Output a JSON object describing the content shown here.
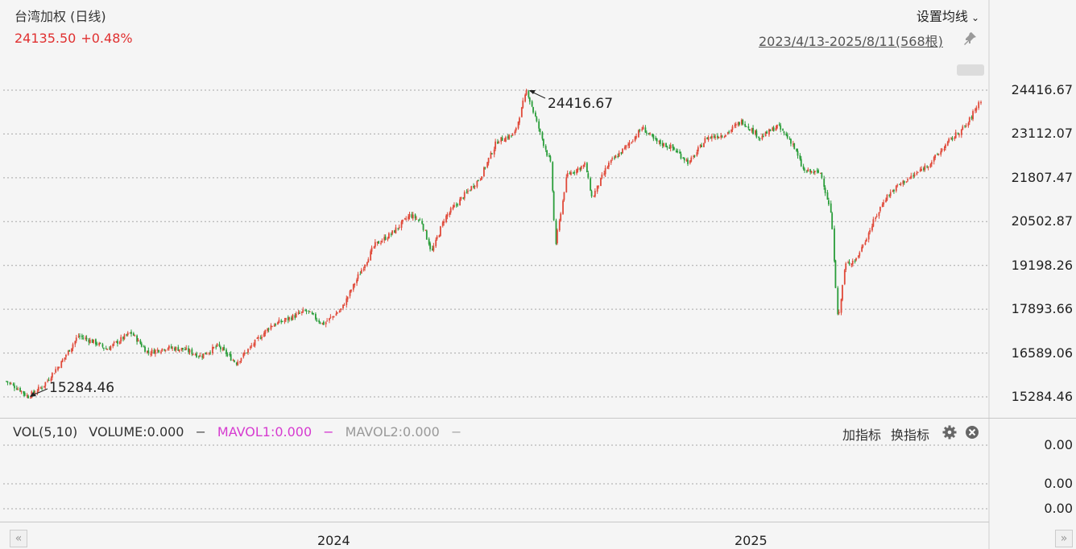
{
  "header": {
    "title": "台湾加权 (日线)",
    "price": "24135.50",
    "change": "+0.48%",
    "ma_settings_label": "设置均线",
    "range_label": "2023/4/13-2025/8/11(568根)"
  },
  "volume_panel": {
    "name": "VOL(5,10)",
    "volume": "VOLUME:0.000",
    "mavol1": "MAVOL1:0.000",
    "mavol2": "MAVOL2:0.000",
    "add_indicator": "加指标",
    "switch_indicator": "换指标",
    "y_ticks": [
      "0.00",
      "0.00",
      "0.00"
    ]
  },
  "icons": [
    "chevron-down-icon",
    "pin-icon",
    "gear-icon",
    "close-icon",
    "double-left-icon",
    "double-right-icon"
  ],
  "colors": {
    "up": "#e04a3a",
    "down": "#2a9d3a",
    "price_text": "#e03030",
    "mavol1": "#d63bd0",
    "mavol2": "#999999"
  },
  "chart_data": {
    "type": "candlestick",
    "x_range": [
      "2023-04-13",
      "2025-08-11"
    ],
    "bar_count": 568,
    "x_ticks": [
      "2024",
      "2025"
    ],
    "y_ticks": [
      "24416.67",
      "23112.07",
      "21807.47",
      "20502.87",
      "19198.26",
      "17893.66",
      "16589.06",
      "15284.46"
    ],
    "ylim": [
      15284.46,
      24416.67
    ],
    "annotations": {
      "high": "24416.67",
      "low": "15284.46"
    },
    "close_path": [
      [
        "2023-04-13",
        15750
      ],
      [
        "2023-04-25",
        15500
      ],
      [
        "2023-05-02",
        15284.46
      ],
      [
        "2023-05-15",
        15600
      ],
      [
        "2023-05-31",
        16300
      ],
      [
        "2023-06-15",
        17100
      ],
      [
        "2023-06-30",
        16900
      ],
      [
        "2023-07-10",
        16700
      ],
      [
        "2023-07-31",
        17200
      ],
      [
        "2023-08-15",
        16600
      ],
      [
        "2023-08-31",
        16750
      ],
      [
        "2023-09-15",
        16700
      ],
      [
        "2023-09-30",
        16500
      ],
      [
        "2023-10-15",
        16800
      ],
      [
        "2023-10-31",
        16300
      ],
      [
        "2023-11-15",
        16850
      ],
      [
        "2023-11-30",
        17400
      ],
      [
        "2023-12-15",
        17600
      ],
      [
        "2023-12-31",
        17850
      ],
      [
        "2024-01-15",
        17450
      ],
      [
        "2024-01-31",
        17900
      ],
      [
        "2024-02-15",
        18900
      ],
      [
        "2024-02-29",
        19800
      ],
      [
        "2024-03-15",
        20150
      ],
      [
        "2024-03-31",
        20700
      ],
      [
        "2024-04-10",
        20500
      ],
      [
        "2024-04-19",
        19600
      ],
      [
        "2024-04-30",
        20600
      ],
      [
        "2024-05-15",
        21200
      ],
      [
        "2024-05-31",
        21800
      ],
      [
        "2024-06-15",
        22900
      ],
      [
        "2024-06-30",
        23100
      ],
      [
        "2024-07-11",
        24416.67
      ],
      [
        "2024-07-22",
        23200
      ],
      [
        "2024-08-01",
        22200
      ],
      [
        "2024-08-05",
        19800
      ],
      [
        "2024-08-15",
        21900
      ],
      [
        "2024-08-31",
        22200
      ],
      [
        "2024-09-06",
        21200
      ],
      [
        "2024-09-20",
        22200
      ],
      [
        "2024-10-05",
        22700
      ],
      [
        "2024-10-20",
        23300
      ],
      [
        "2024-10-31",
        22900
      ],
      [
        "2024-11-15",
        22700
      ],
      [
        "2024-11-30",
        22250
      ],
      [
        "2024-12-15",
        23000
      ],
      [
        "2024-12-31",
        23100
      ],
      [
        "2025-01-15",
        23500
      ],
      [
        "2025-01-31",
        23000
      ],
      [
        "2025-02-15",
        23350
      ],
      [
        "2025-02-28",
        22850
      ],
      [
        "2025-03-10",
        22000
      ],
      [
        "2025-03-25",
        21950
      ],
      [
        "2025-04-03",
        20700
      ],
      [
        "2025-04-09",
        17500
      ],
      [
        "2025-04-15",
        19200
      ],
      [
        "2025-04-25",
        19400
      ],
      [
        "2025-05-10",
        20500
      ],
      [
        "2025-05-20",
        21200
      ],
      [
        "2025-06-01",
        21600
      ],
      [
        "2025-06-15",
        21900
      ],
      [
        "2025-06-30",
        22300
      ],
      [
        "2025-07-15",
        22900
      ],
      [
        "2025-07-31",
        23400
      ],
      [
        "2025-08-11",
        24135.5
      ]
    ]
  }
}
